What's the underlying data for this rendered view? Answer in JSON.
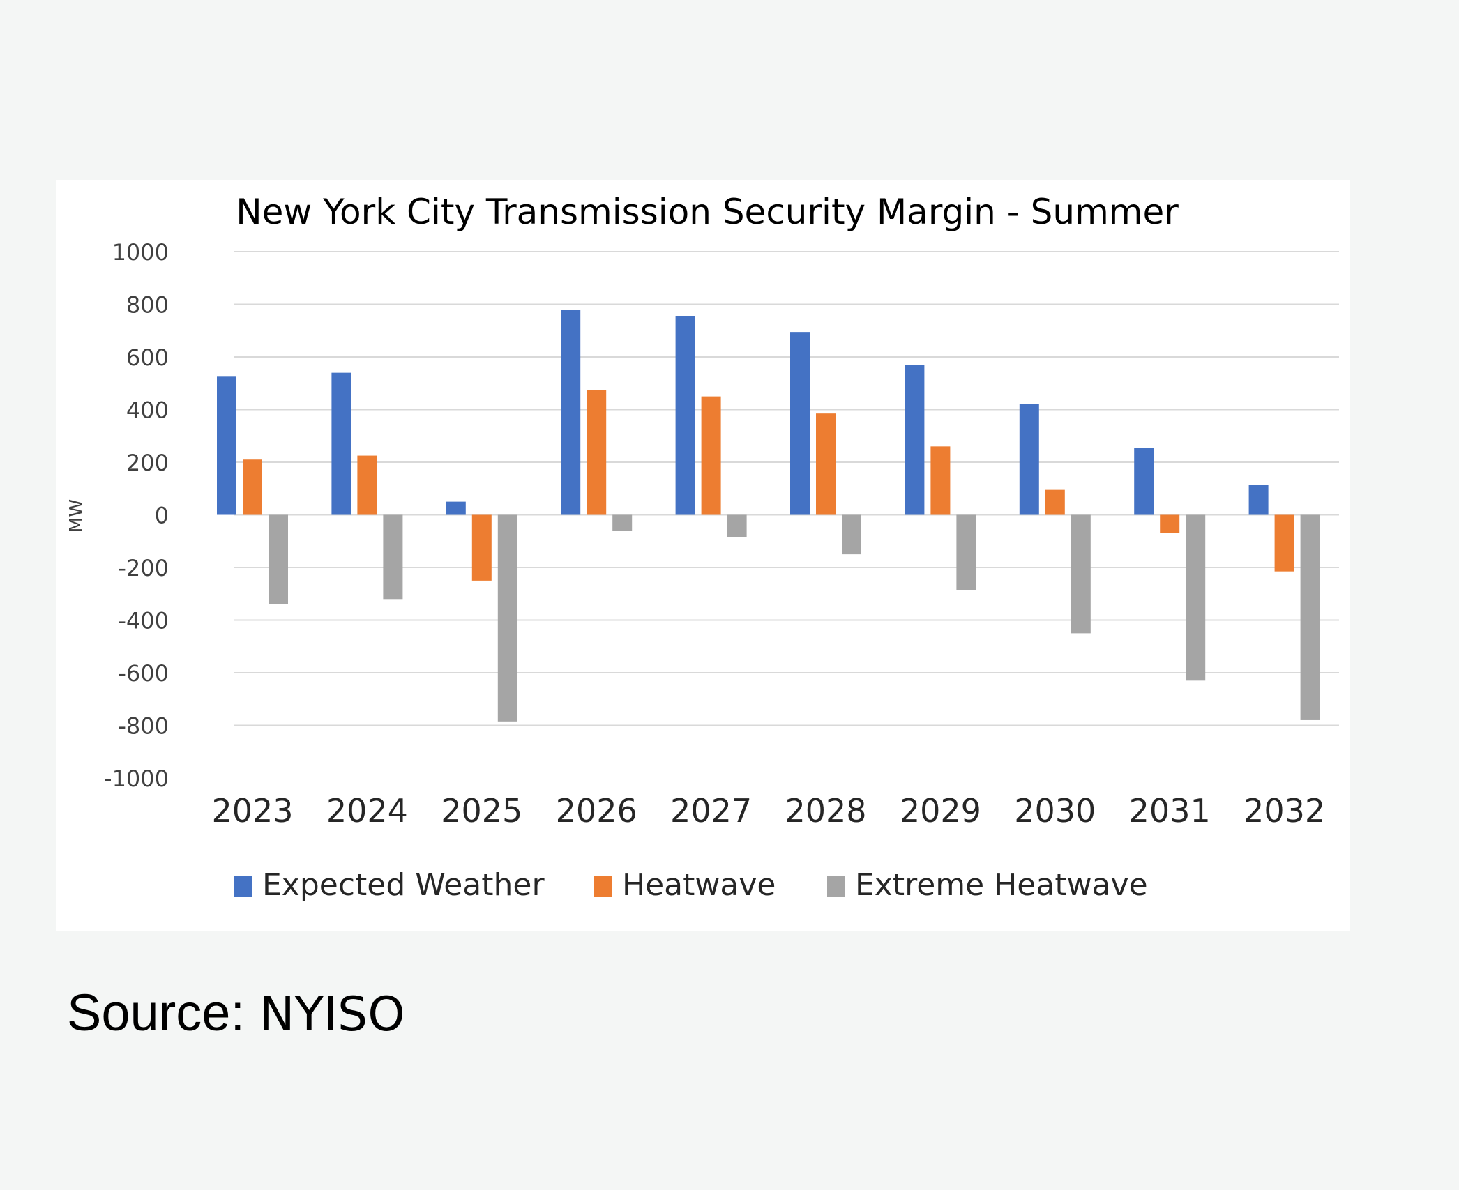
{
  "source": {
    "label": "Source:",
    "value": "NYISO"
  },
  "chart_data": {
    "type": "bar",
    "title": "New York City Transmission Security Margin - Summer",
    "xlabel": "",
    "ylabel": "MW",
    "ylim": [
      -1000,
      1000
    ],
    "yticks": [
      1000,
      800,
      600,
      400,
      200,
      0,
      -200,
      -400,
      -600,
      -800,
      -1000
    ],
    "grid": true,
    "legend_position": "bottom",
    "categories": [
      "2023",
      "2024",
      "2025",
      "2026",
      "2027",
      "2028",
      "2029",
      "2030",
      "2031",
      "2032"
    ],
    "series": [
      {
        "name": "Expected Weather",
        "color": "#4472c4",
        "values": [
          525,
          540,
          50,
          780,
          755,
          695,
          570,
          420,
          255,
          115
        ]
      },
      {
        "name": "Heatwave",
        "color": "#ed7d31",
        "values": [
          210,
          225,
          -250,
          475,
          450,
          385,
          260,
          95,
          -70,
          -215
        ]
      },
      {
        "name": "Extreme Heatwave",
        "color": "#a5a5a5",
        "values": [
          -340,
          -320,
          -785,
          -60,
          -85,
          -150,
          -285,
          -450,
          -630,
          -780
        ]
      }
    ]
  }
}
